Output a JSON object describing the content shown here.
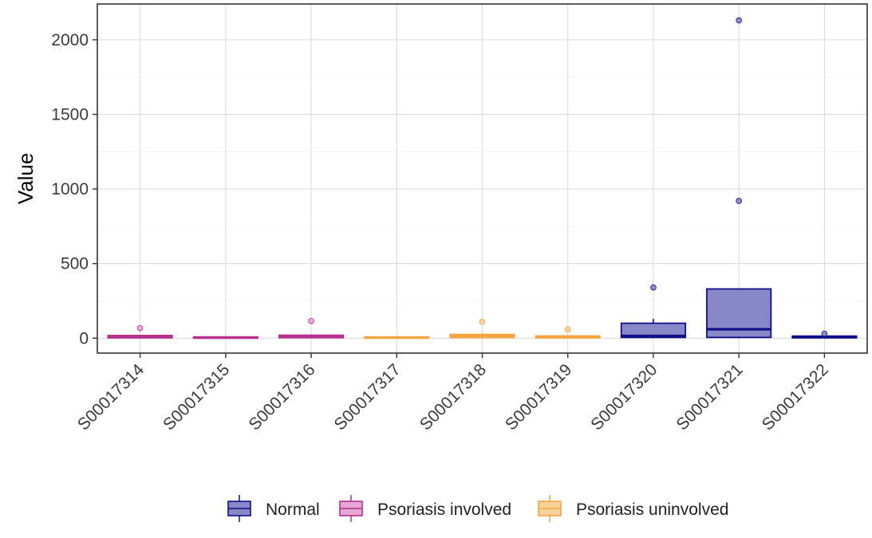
{
  "chart_data": {
    "type": "box",
    "title": "",
    "xlabel": "",
    "ylabel": "Value",
    "ylim": [
      -100,
      2240
    ],
    "yticks": [
      "0",
      "500",
      "1000",
      "1500",
      "2000"
    ],
    "ytick_values": [
      0,
      500,
      1000,
      1500,
      2000
    ],
    "grid": true,
    "legend_position": "bottom",
    "groups": [
      {
        "name": "Normal",
        "color": "#0f0f8c",
        "fill": "#8888c8"
      },
      {
        "name": "Psoriasis involved",
        "color": "#b5308f",
        "fill": "#e7a6d4"
      },
      {
        "name": "Psoriasis uninvolved",
        "color": "#f5a640",
        "fill": "#f9d39c"
      }
    ],
    "categories": [
      "S00017314",
      "S00017315",
      "S00017316",
      "S00017317",
      "S00017318",
      "S00017319",
      "S00017320",
      "S00017321",
      "S00017322"
    ],
    "boxes": [
      {
        "group": "Psoriasis involved",
        "min": 0,
        "q1": 2,
        "median": 8,
        "q3": 18,
        "max": 22,
        "outliers": [
          68
        ]
      },
      {
        "group": "Psoriasis involved",
        "min": 0,
        "q1": 1,
        "median": 4,
        "q3": 8,
        "max": 10,
        "outliers": []
      },
      {
        "group": "Psoriasis involved",
        "min": 0,
        "q1": 3,
        "median": 10,
        "q3": 20,
        "max": 25,
        "outliers": [
          115
        ]
      },
      {
        "group": "Psoriasis uninvolved",
        "min": 0,
        "q1": 1,
        "median": 4,
        "q3": 8,
        "max": 10,
        "outliers": []
      },
      {
        "group": "Psoriasis uninvolved",
        "min": 0,
        "q1": 4,
        "median": 12,
        "q3": 25,
        "max": 30,
        "outliers": [
          110
        ]
      },
      {
        "group": "Psoriasis uninvolved",
        "min": 0,
        "q1": 2,
        "median": 7,
        "q3": 15,
        "max": 18,
        "outliers": [
          58
        ]
      },
      {
        "group": "Normal",
        "min": 0,
        "q1": 5,
        "median": 15,
        "q3": 100,
        "max": 130,
        "outliers": [
          340
        ]
      },
      {
        "group": "Normal",
        "min": 0,
        "q1": 5,
        "median": 60,
        "q3": 330,
        "max": 330,
        "outliers": [
          920,
          2130
        ]
      },
      {
        "group": "Normal",
        "min": 0,
        "q1": 2,
        "median": 8,
        "q3": 14,
        "max": 16,
        "outliers": [
          30
        ]
      }
    ]
  }
}
